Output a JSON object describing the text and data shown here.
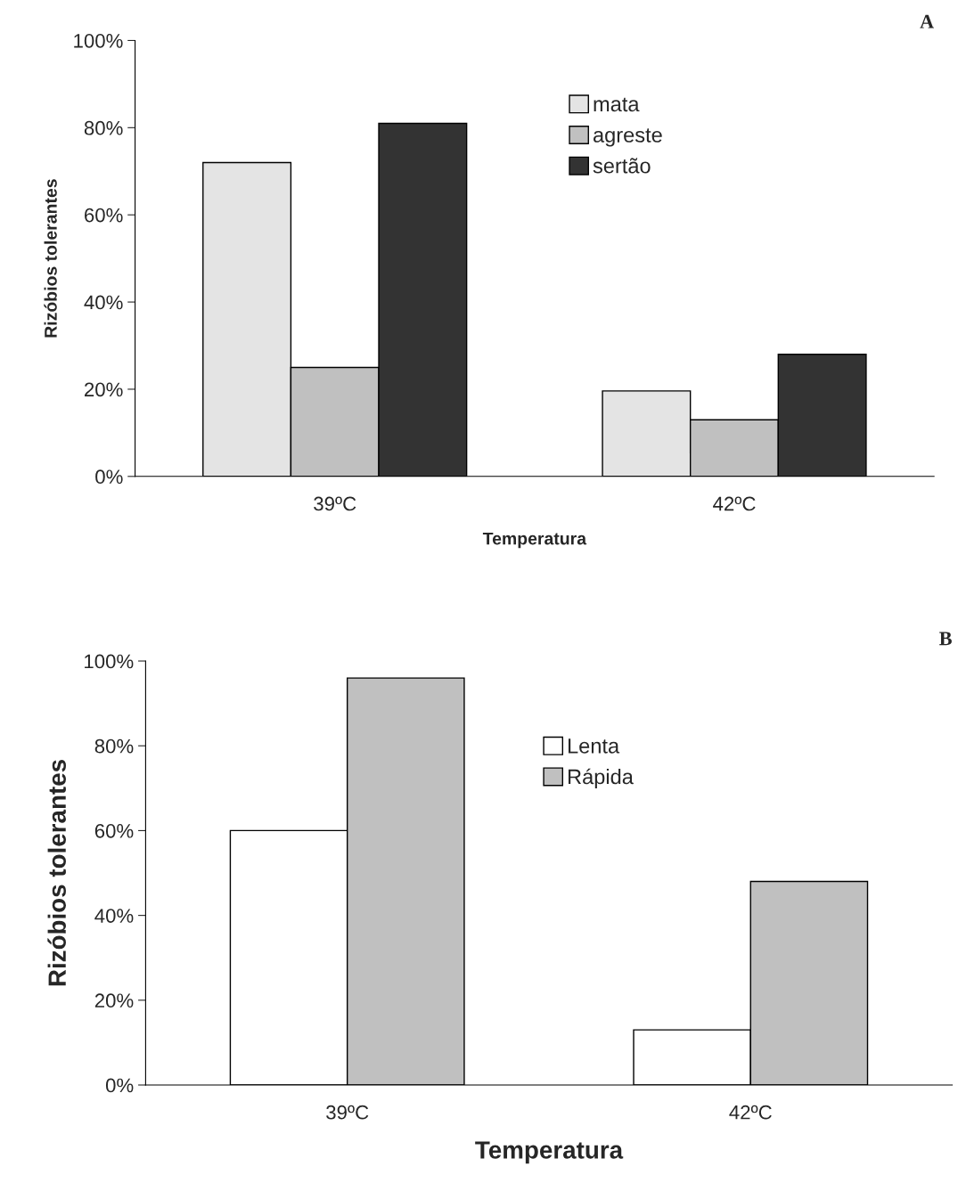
{
  "chart_data": [
    {
      "type": "bar",
      "categories": [
        "39ºC",
        "42ºC"
      ],
      "xlabel": "Temperatura",
      "ylabel": "Rizóbios tolerantes",
      "series": [
        {
          "name": "mata",
          "color": "#e4e4e4",
          "values": [
            72,
            19.6
          ]
        },
        {
          "name": "agreste",
          "color": "#c0c0c0",
          "values": [
            25,
            13
          ]
        },
        {
          "name": "sertão",
          "color": "#333333",
          "values": [
            81,
            28
          ]
        }
      ],
      "ylim": [
        0,
        100
      ],
      "yticks": [
        {
          "value": 0,
          "label": "0%"
        },
        {
          "value": 20,
          "label": "20%"
        },
        {
          "value": 40,
          "label": "40%"
        },
        {
          "value": 60,
          "label": "60%"
        },
        {
          "value": 80,
          "label": "80%"
        },
        {
          "value": 100,
          "label": "100%"
        }
      ],
      "grid": false,
      "legend": "center",
      "annotations": [
        "A"
      ]
    },
    {
      "type": "bar",
      "categories": [
        "39ºC",
        "42ºC"
      ],
      "xlabel": "Temperatura",
      "ylabel": "Rizóbios tolerantes",
      "series": [
        {
          "name": "Lenta",
          "color": "#ffffff",
          "values": [
            60,
            13
          ]
        },
        {
          "name": "Rápida",
          "color": "#c0c0c0",
          "values": [
            96,
            48
          ]
        }
      ],
      "ylim": [
        0,
        100
      ],
      "yticks": [
        {
          "value": 0,
          "label": "0%"
        },
        {
          "value": 20,
          "label": "20%"
        },
        {
          "value": 40,
          "label": "40%"
        },
        {
          "value": 60,
          "label": "60%"
        },
        {
          "value": 80,
          "label": "80%"
        },
        {
          "value": 100,
          "label": "100%"
        }
      ],
      "grid": false,
      "legend": "center",
      "annotations": [
        "B"
      ]
    }
  ]
}
